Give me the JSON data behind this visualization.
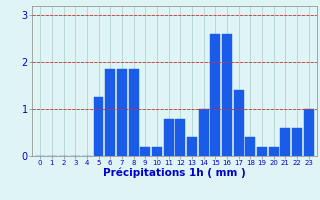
{
  "hours": [
    0,
    1,
    2,
    3,
    4,
    5,
    6,
    7,
    8,
    9,
    10,
    11,
    12,
    13,
    14,
    15,
    16,
    17,
    18,
    19,
    20,
    21,
    22,
    23
  ],
  "values": [
    0.0,
    0.0,
    0.0,
    0.0,
    0.0,
    1.25,
    1.85,
    1.85,
    1.85,
    0.2,
    0.2,
    0.8,
    0.8,
    0.4,
    1.0,
    2.6,
    2.6,
    1.4,
    0.4,
    0.2,
    0.2,
    0.6,
    0.6,
    1.0
  ],
  "bar_color": "#1a5ce8",
  "bar_edge_color": "#1a5ce8",
  "background_color": "#dff4f4",
  "grid_color": "#aacbcb",
  "xlabel": "Précipitations 1h ( mm )",
  "xlabel_color": "#0000cc",
  "tick_color": "#0000cc",
  "ylim": [
    0,
    3.2
  ],
  "yticks": [
    0,
    1,
    2,
    3
  ],
  "axis_color": "#888888"
}
